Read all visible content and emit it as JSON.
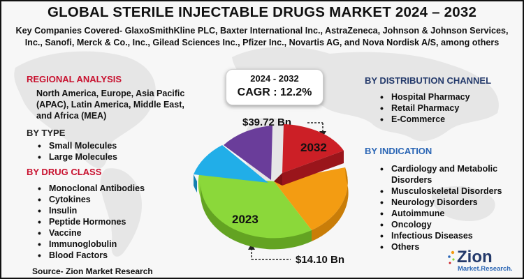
{
  "title": "GLOBAL STERILE INJECTABLE DRUGS MARKET 2024 – 2032",
  "subtitle": "Key Companies Covered- GlaxoSmithKline PLC, Baxter International Inc., AstraZeneca, Johnson & Johnson Services, Inc., Sanofi, Merck & Co., Inc., Gilead Sciences Inc., Pfizer Inc., Novartis AG, and Nova Nordisk A/S, among others",
  "regional": {
    "heading": "REGIONAL ANALYSIS",
    "text": "North America, Europe, Asia Pacific (APAC), Latin America, Middle East, and Africa (MEA)"
  },
  "by_type": {
    "heading": "BY TYPE",
    "items": [
      "Small Molecules",
      "Large Molecules"
    ]
  },
  "by_drug_class": {
    "heading": "BY DRUG CLASS",
    "items": [
      "Monoclonal Antibodies",
      "Cytokines",
      "Insulin",
      "Peptide Hormones",
      "Vaccine",
      "Immunoglobulin",
      "Blood Factors"
    ]
  },
  "by_distribution": {
    "heading": "BY DISTRIBUTION CHANNEL",
    "items": [
      "Hospital Pharmacy",
      "Retail Pharmacy",
      "E-Commerce"
    ]
  },
  "by_indication": {
    "heading": "BY INDICATION",
    "items": [
      "Cardiology and Metabolic",
      "Disorders",
      "Musculoskeletal Disorders",
      "Neurology Disorders",
      "Autoimmune",
      "Oncology",
      "Infectious Diseases",
      "Others"
    ]
  },
  "cagr": {
    "years": "2024 - 2032",
    "value": "CAGR : 12.2%"
  },
  "values": {
    "high": "$39.72 Bn",
    "low": "$14.10 Bn"
  },
  "pie": {
    "label_top": "2032",
    "label_bottom": "2023",
    "colors": {
      "red": "#cc1f26",
      "orange": "#f39c12",
      "green": "#8bd83a",
      "cyan": "#21aee8",
      "purple": "#6a3d9a"
    }
  },
  "source": "Source- Zion Market Research",
  "logo": {
    "word": "Zion",
    "tagline": "Market.Research."
  }
}
